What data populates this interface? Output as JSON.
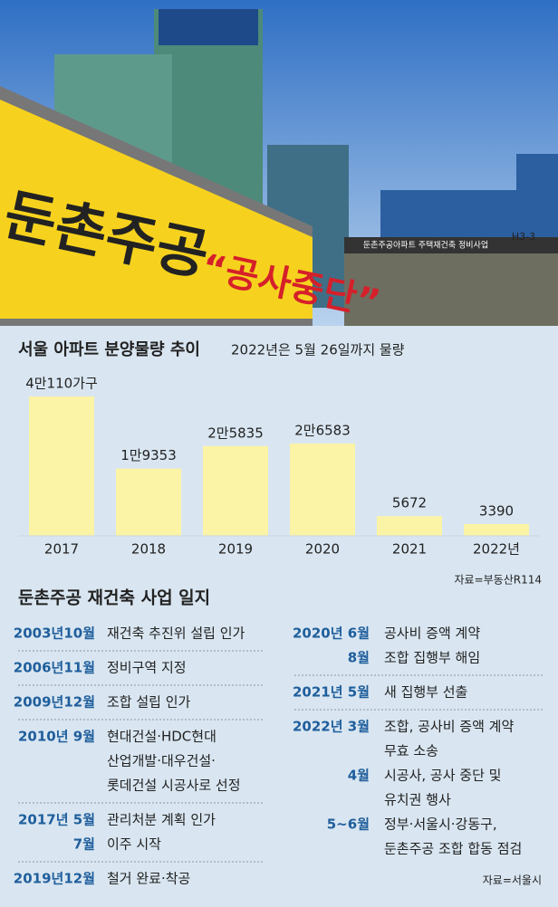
{
  "photo": {
    "banner": [
      "둔촌주공",
      "“공사중단”"
    ],
    "signs": [
      "둔촌주공아파트 주택재건축 정비사업",
      "H3-3"
    ]
  },
  "chart_data": {
    "type": "bar",
    "title": "서울 아파트 분양물량 추이",
    "subtitle": "2022년은 5월 26일까지 물량",
    "categories": [
      "2017",
      "2018",
      "2019",
      "2020",
      "2021",
      "2022년"
    ],
    "values": [
      40110,
      19353,
      25835,
      26583,
      5672,
      3390
    ],
    "value_labels": [
      "4만110가구",
      "1만9353",
      "2만5835",
      "2만6583",
      "5672",
      "3390"
    ],
    "color": "#fbf3a6",
    "source": "자료=부동산R114"
  },
  "timeline": {
    "title": "둔촌주공 재건축 사업 일지",
    "source": "자료=서울시",
    "columns": [
      [
        [
          {
            "date": "2003년10월",
            "lines": [
              "재건축 추진위 설립 인가"
            ]
          }
        ],
        [
          {
            "date": "2006년11월",
            "lines": [
              "정비구역 지정"
            ]
          }
        ],
        [
          {
            "date": "2009년12월",
            "lines": [
              "조합 설립 인가"
            ]
          }
        ],
        [
          {
            "date": "2010년 9월",
            "lines": [
              "현대건설·HDC현대",
              "산업개발·대우건설·",
              "롯데건설 시공사로 선정"
            ]
          }
        ],
        [
          {
            "date": "2017년 5월",
            "lines": [
              "관리처분 계획 인가"
            ]
          },
          {
            "date": "7월",
            "lines": [
              "이주 시작"
            ]
          }
        ],
        [
          {
            "date": "2019년12월",
            "lines": [
              "철거 완료·착공"
            ]
          }
        ]
      ],
      [
        [
          {
            "date": "2020년 6월",
            "lines": [
              "공사비 증액 계약"
            ]
          },
          {
            "date": "8월",
            "lines": [
              "조합 집행부 해임"
            ]
          }
        ],
        [
          {
            "date": "2021년 5월",
            "lines": [
              "새 집행부 선출"
            ]
          }
        ],
        [
          {
            "date": "2022년 3월",
            "lines": [
              "조합, 공사비 증액 계약",
              "무효 소송"
            ]
          },
          {
            "date": "4월",
            "lines": [
              "시공사, 공사 중단 및",
              "유치권 행사"
            ]
          },
          {
            "date": "5~6월",
            "lines": [
              "정부·서울시·강동구,",
              "둔촌주공 조합 합동 점검"
            ]
          }
        ]
      ]
    ]
  }
}
